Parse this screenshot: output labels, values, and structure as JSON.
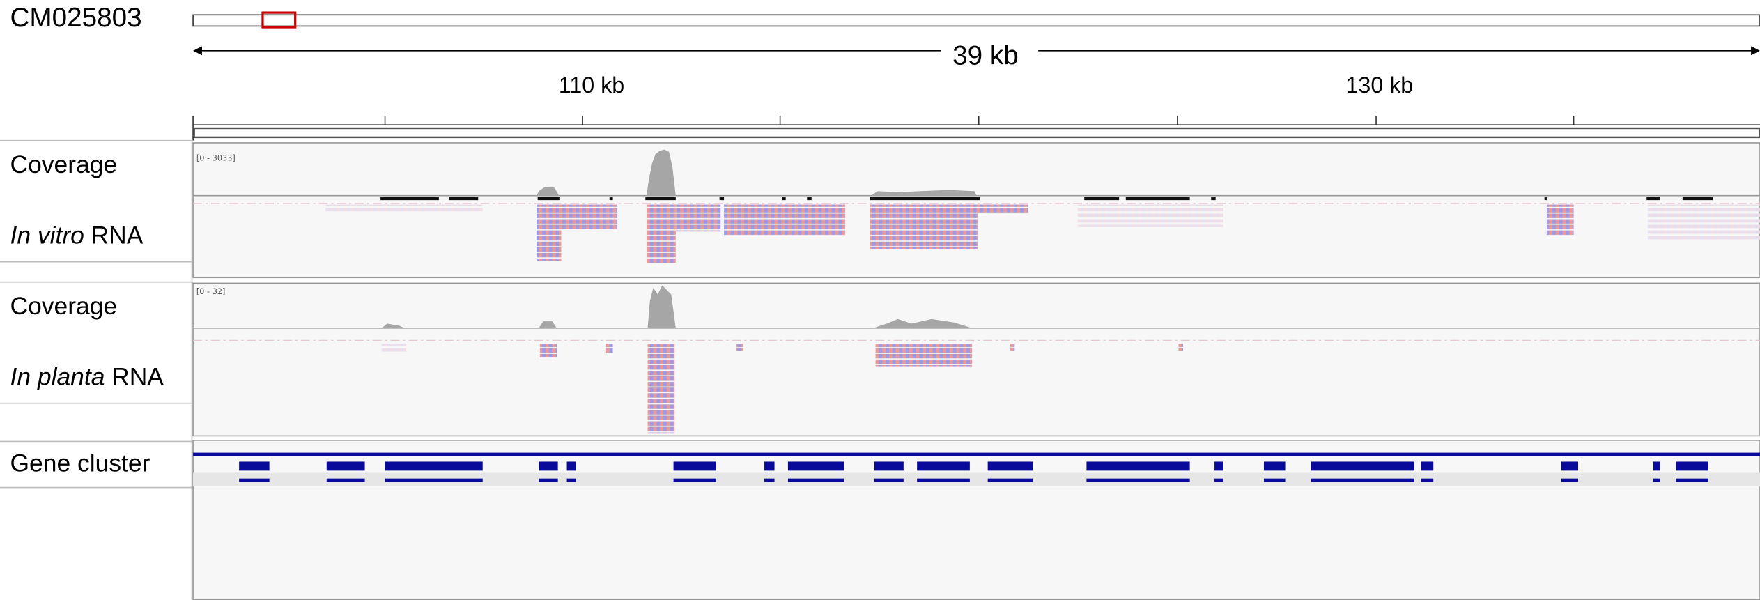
{
  "header": {
    "chromosome": "CM025803",
    "span": "39 kb",
    "ruler_labels": [
      "110 kb",
      "130 kb"
    ]
  },
  "tracks": [
    {
      "label": "Coverage",
      "data_range": "[0 - 3033]"
    },
    {
      "label_italic": "In vitro",
      "label_rest": "RNA"
    },
    {
      "label": "Coverage",
      "data_range": "[0 - 32]"
    },
    {
      "label_italic": "In planta",
      "label_rest": "RNA"
    },
    {
      "label": "Gene cluster"
    }
  ]
}
